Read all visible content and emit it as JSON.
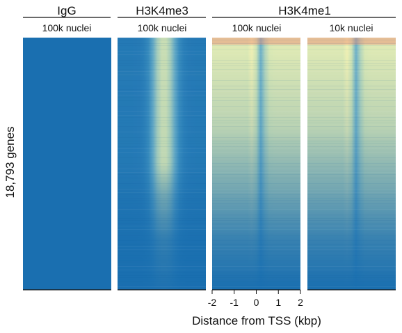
{
  "chart_data": {
    "type": "heatmap",
    "ylabel": "18,793 genes",
    "xlabel": "Distance from TSS (kbp)",
    "x_ticks": [
      "-2",
      "-1",
      "0",
      "1",
      "2"
    ],
    "xlim": [
      -2,
      2
    ],
    "groups": [
      {
        "label": "IgG",
        "panel_indices": [
          0
        ]
      },
      {
        "label": "H3K4me3",
        "panel_indices": [
          1
        ]
      },
      {
        "label": "H3K4me1",
        "panel_indices": [
          2,
          3
        ]
      }
    ],
    "panels": [
      {
        "mark": "IgG",
        "subtitle": "100k nuclei",
        "signal_profile": "flat"
      },
      {
        "mark": "H3K4me3",
        "subtitle": "100k nuclei",
        "signal_profile": "tss-centered peak"
      },
      {
        "mark": "H3K4me1",
        "subtitle": "100k nuclei",
        "signal_profile": "bimodal, depleted at TSS"
      },
      {
        "mark": "H3K4me1",
        "subtitle": "10k nuclei",
        "signal_profile": "bimodal, depleted at TSS"
      }
    ],
    "colormap": [
      "#1a6fb0",
      "#3c8fbf",
      "#7fbccb",
      "#d2e6b5",
      "#f6f4b3",
      "#f2b58e",
      "#e9846f"
    ]
  }
}
